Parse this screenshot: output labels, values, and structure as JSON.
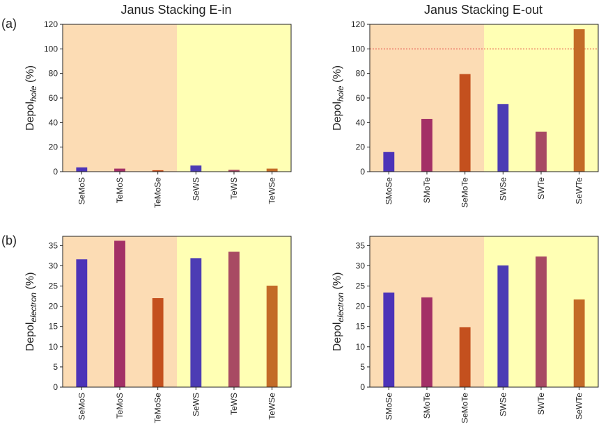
{
  "figure": {
    "column_titles": [
      "Janus Stacking E-in",
      "Janus Stacking E-out"
    ],
    "row_labels": [
      "(a)",
      "(b)"
    ],
    "shading_colors": [
      "#fcdcb4",
      "#ffffb4"
    ],
    "axis_color": "#222222"
  },
  "chart_data": [
    {
      "type": "bar",
      "row": "(a)",
      "column_title": "Janus Stacking E-in",
      "categories": [
        "SeMoS",
        "TeMoS",
        "TeMoSe",
        "SeWS",
        "TeWS",
        "TeWSe"
      ],
      "values": [
        3.5,
        2.5,
        1.2,
        5.0,
        1.5,
        2.5
      ],
      "colors": [
        "#4c33b8",
        "#a33066",
        "#c4501e",
        "#4c3cb4",
        "#a84a63",
        "#c36b27"
      ],
      "ylabel_main": "Depol",
      "ylabel_sub": "hole",
      "ylabel_unit": "(%)",
      "ylim": [
        0,
        120
      ],
      "yticks": [
        0,
        20,
        40,
        60,
        80,
        100,
        120
      ],
      "shaded_regions": [
        "orange",
        "yellow"
      ],
      "grid": false
    },
    {
      "type": "bar",
      "row": "(a)",
      "column_title": "Janus Stacking E-out",
      "categories": [
        "SMoSe",
        "SMoTe",
        "SeMoTe",
        "SWSe",
        "SWTe",
        "SeWTe"
      ],
      "values": [
        16,
        43,
        79.5,
        55,
        32.5,
        116
      ],
      "colors": [
        "#4c33b8",
        "#a33066",
        "#c4501e",
        "#4c3cb4",
        "#a84a63",
        "#c36b27"
      ],
      "ylabel_main": "Depol",
      "ylabel_sub": "hole",
      "ylabel_unit": "(%)",
      "ylim": [
        0,
        120
      ],
      "yticks": [
        0,
        20,
        40,
        60,
        80,
        100,
        120
      ],
      "reference_line": 100,
      "reference_line_color": "#e03030",
      "shaded_regions": [
        "orange",
        "yellow"
      ],
      "grid": false
    },
    {
      "type": "bar",
      "row": "(b)",
      "column_title": "Janus Stacking E-in",
      "categories": [
        "SeMoS",
        "TeMoS",
        "TeMoSe",
        "SeWS",
        "TeWS",
        "TeWSe"
      ],
      "values": [
        31.6,
        36.2,
        22.0,
        31.9,
        33.5,
        25.1
      ],
      "colors": [
        "#4c33b8",
        "#a33066",
        "#c4501e",
        "#4c3cb4",
        "#a84a63",
        "#c36b27"
      ],
      "ylabel_main": "Depol",
      "ylabel_sub": "electron",
      "ylabel_unit": "(%)",
      "ylim": [
        0,
        37.3
      ],
      "yticks": [
        0,
        5,
        10,
        15,
        20,
        25,
        30,
        35
      ],
      "shaded_regions": [
        "orange",
        "yellow"
      ],
      "grid": false
    },
    {
      "type": "bar",
      "row": "(b)",
      "column_title": "Janus Stacking E-out",
      "categories": [
        "SMoSe",
        "SMoTe",
        "SeMoTe",
        "SWSe",
        "SWTe",
        "SeWTe"
      ],
      "values": [
        23.4,
        22.2,
        14.8,
        30.1,
        32.3,
        21.7
      ],
      "colors": [
        "#4c33b8",
        "#a33066",
        "#c4501e",
        "#4c3cb4",
        "#a84a63",
        "#c36b27"
      ],
      "ylabel_main": "Depol",
      "ylabel_sub": "electron",
      "ylabel_unit": "(%)",
      "ylim": [
        0,
        37.3
      ],
      "yticks": [
        0,
        5,
        10,
        15,
        20,
        25,
        30,
        35
      ],
      "shaded_regions": [
        "orange",
        "yellow"
      ],
      "grid": false
    }
  ]
}
